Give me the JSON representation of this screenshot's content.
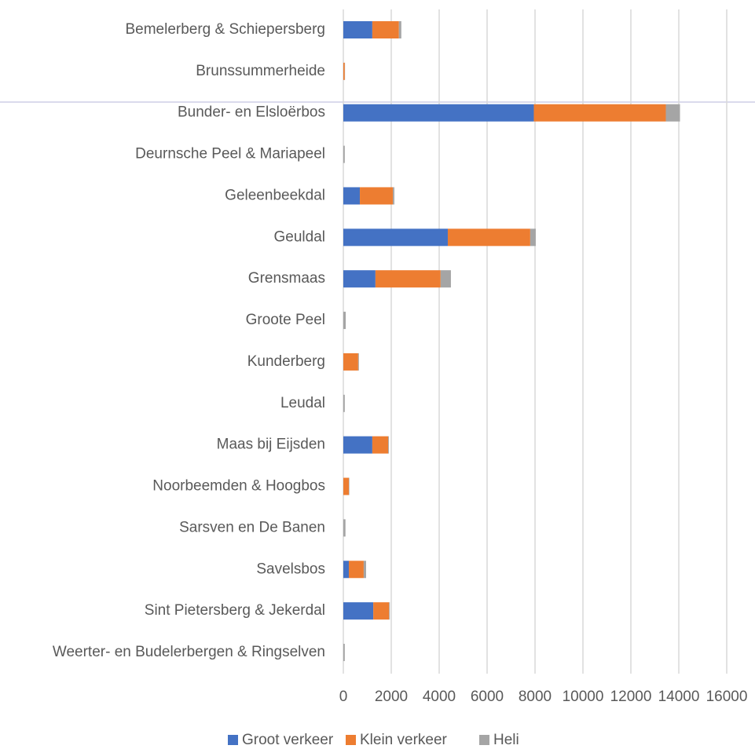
{
  "chart_data": {
    "type": "stacked_bar_horizontal",
    "categories": [
      "Bemelerberg & Schiepersberg",
      "Brunssummerheide",
      "Bunder- en Elsloërbos",
      "Deurnsche Peel & Mariapeel",
      "Geleenbeekdal",
      "Geuldal",
      "Grensmaas",
      "Groote Peel",
      "Kunderberg",
      "Leudal",
      "Maas bij Eijsden",
      "Noorbeemden & Hoogbos",
      "Sarsven en De Banen",
      "Savelsbos",
      "Sint Pietersberg & Jekerdal",
      "Weerter- en Budelerbergen & Ringselven"
    ],
    "series": [
      {
        "name": "Groot verkeer",
        "color": "#4472c4",
        "values": [
          1210,
          0,
          7950,
          0,
          690,
          4360,
          1340,
          0,
          0,
          0,
          1210,
          0,
          0,
          230,
          1250,
          0
        ]
      },
      {
        "name": "Klein verkeer",
        "color": "#ed7d31",
        "values": [
          1110,
          60,
          5510,
          0,
          1380,
          3440,
          2720,
          0,
          620,
          0,
          660,
          230,
          0,
          620,
          660,
          0
        ]
      },
      {
        "name": "Heli",
        "color": "#a5a5a5",
        "values": [
          100,
          10,
          590,
          60,
          60,
          230,
          430,
          100,
          30,
          60,
          30,
          20,
          90,
          100,
          30,
          60
        ]
      }
    ],
    "xlim": [
      0,
      16000
    ],
    "xticks": [
      0,
      2000,
      4000,
      6000,
      8000,
      10000,
      12000,
      14000,
      16000
    ],
    "grid": true,
    "legend": "bottom"
  }
}
